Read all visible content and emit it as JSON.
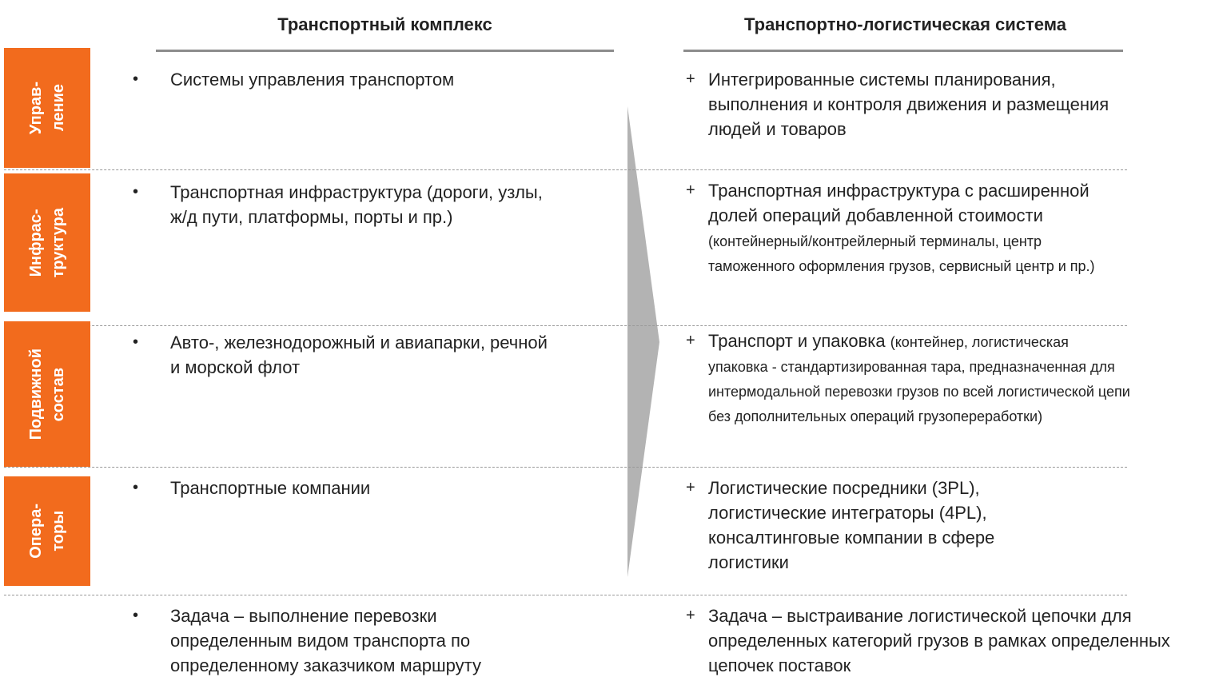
{
  "header": {
    "left": "Транспортный комплекс",
    "right": "Транспортно-логистическая система"
  },
  "markers": {
    "left": "•",
    "right": "+"
  },
  "rows": [
    {
      "label": [
        "Управ-",
        "ление"
      ],
      "left": "Системы управления транспортом",
      "right": {
        "text": "Интегрированные системы планирования, выполнения и контроля движения и размещения людей и товаров"
      }
    },
    {
      "label": [
        "Инфрас-",
        "труктура"
      ],
      "left": "Транспортная инфраструктура (дороги, узлы, ж/д пути, платформы, порты и пр.)",
      "right": {
        "text": "Транспортная инфраструктура с расширенной долей операций добавленной стоимости",
        "note": "(контейнерный/контрейлерный терминалы, центр таможенного оформления грузов, сервисный центр и пр.)"
      }
    },
    {
      "label": [
        "Подвижной",
        "состав"
      ],
      "left": "Авто-, железнодорожный и авиапарки, речной и морской флот",
      "right": {
        "text": "Транспорт и упаковка",
        "note": "(контейнер, логистическая упаковка - стандартизированная тара, предназначенная для интермодальной перевозки грузов по всей логистической цепи без дополнительных операций грузопереработки)"
      }
    },
    {
      "label": [
        "Опера-",
        "торы"
      ],
      "left": "Транспортные компании",
      "right": {
        "text": "Логистические посредники (3PL), логистические интеграторы (4PL), консалтинговые компании в сфере логистики"
      }
    },
    {
      "left": "Задача – выполнение перевозки определенным видом транспорта по определенному заказчиком маршруту",
      "right": {
        "text": "Задача – выстраивание логистической цепочки для определенных категорий грузов в рамках определенных цепочек поставок"
      }
    }
  ]
}
